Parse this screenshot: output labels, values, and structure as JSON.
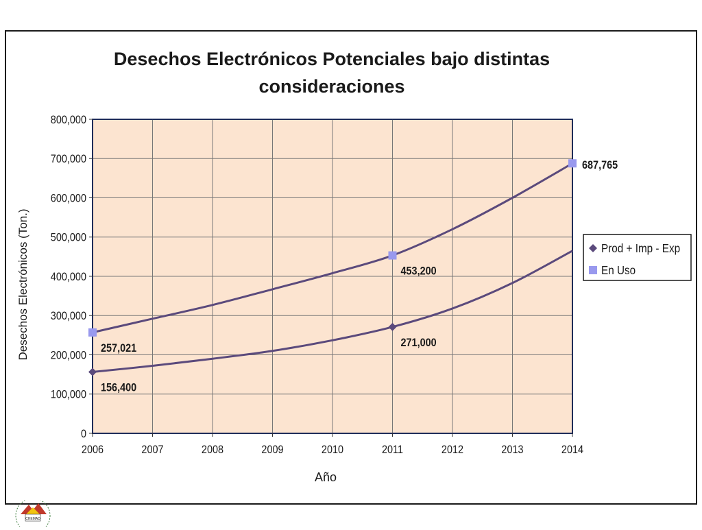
{
  "chart_data": {
    "type": "line",
    "title_line1": "Desechos Electrónicos Potenciales  bajo distintas",
    "title_line2": "consideraciones",
    "xlabel": "Año",
    "ylabel": "Desechos Electrónicos (Ton.)",
    "x": [
      2006,
      2007,
      2008,
      2009,
      2010,
      2011,
      2012,
      2013,
      2014
    ],
    "ylim": [
      0,
      800000
    ],
    "yticks": [
      0,
      100000,
      200000,
      300000,
      400000,
      500000,
      600000,
      700000,
      800000
    ],
    "ytick_labels": [
      "0",
      "100,000",
      "200,000",
      "300,000",
      "400,000",
      "500,000",
      "600,000",
      "700,000",
      "800,000"
    ],
    "grid": true,
    "legend_position": "right",
    "plot_background": "#FCE4D0",
    "series": [
      {
        "name": "Prod + Imp - Exp",
        "marker": "diamond",
        "color": "#5B4A7C",
        "values": [
          156400,
          172000,
          190000,
          210000,
          237000,
          271000,
          318000,
          383000,
          465000
        ],
        "markers_at": [
          2006,
          2011
        ],
        "labels": [
          {
            "x": 2006,
            "text": "156,400"
          },
          {
            "x": 2011,
            "text": "271,000"
          }
        ]
      },
      {
        "name": "En Uso",
        "marker": "square",
        "marker_color": "#9999EE",
        "color": "#5B4A7C",
        "values": [
          257021,
          292000,
          327000,
          367000,
          408000,
          453200,
          520000,
          600000,
          687765
        ],
        "markers_at": [
          2006,
          2011,
          2014
        ],
        "labels": [
          {
            "x": 2006,
            "text": "257,021"
          },
          {
            "x": 2011,
            "text": "453,200"
          },
          {
            "x": 2014,
            "text": "687,765"
          }
        ]
      }
    ]
  },
  "logo": {
    "text": "CHEMAD"
  }
}
